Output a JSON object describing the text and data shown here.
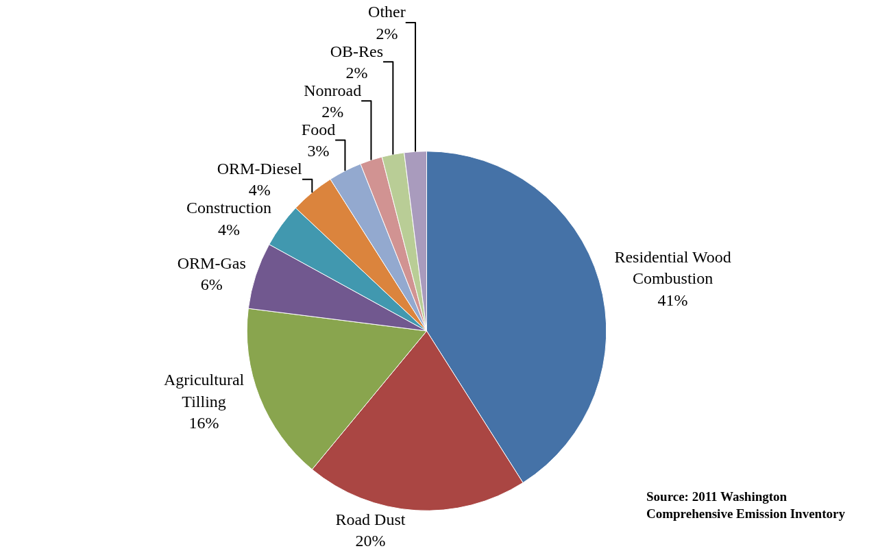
{
  "chart_data": {
    "type": "pie",
    "categories": [
      "Residential Wood Combustion",
      "Road Dust",
      "Agricultural Tilling",
      "ORM-Gas",
      "Construction",
      "ORM-Diesel",
      "Food",
      "Nonroad",
      "OB-Res",
      "Other"
    ],
    "values": [
      41,
      20,
      16,
      6,
      4,
      4,
      3,
      2,
      2,
      2
    ],
    "value_labels": [
      "41%",
      "20%",
      "16%",
      "6%",
      "4%",
      "4%",
      "3%",
      "2%",
      "2%",
      "2%"
    ],
    "colors": [
      "#4572a7",
      "#aa4643",
      "#89a54e",
      "#71588f",
      "#4198af",
      "#db843d",
      "#93a9cf",
      "#d19392",
      "#b9cd96",
      "#a99bbd"
    ],
    "legend": false,
    "annotations": [
      "Source: 2011 Washington Comprehensive Emission Inventory"
    ]
  }
}
